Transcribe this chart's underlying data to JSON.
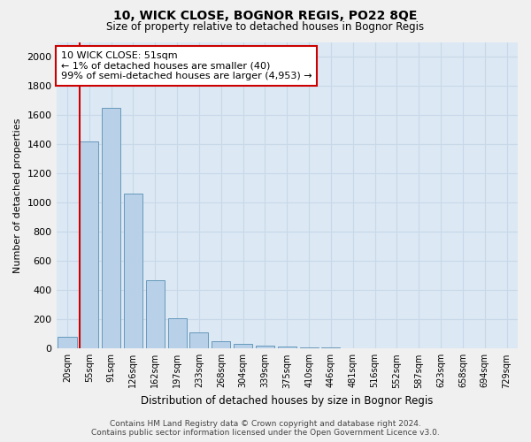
{
  "title1": "10, WICK CLOSE, BOGNOR REGIS, PO22 8QE",
  "title2": "Size of property relative to detached houses in Bognor Regis",
  "xlabel": "Distribution of detached houses by size in Bognor Regis",
  "ylabel": "Number of detached properties",
  "footer1": "Contains HM Land Registry data © Crown copyright and database right 2024.",
  "footer2": "Contains public sector information licensed under the Open Government Licence v3.0.",
  "annotation_title": "10 WICK CLOSE: 51sqm",
  "annotation_line1": "← 1% of detached houses are smaller (40)",
  "annotation_line2": "99% of semi-detached houses are larger (4,953) →",
  "bar_labels": [
    "20sqm",
    "55sqm",
    "91sqm",
    "126sqm",
    "162sqm",
    "197sqm",
    "233sqm",
    "268sqm",
    "304sqm",
    "339sqm",
    "375sqm",
    "410sqm",
    "446sqm",
    "481sqm",
    "516sqm",
    "552sqm",
    "587sqm",
    "623sqm",
    "658sqm",
    "694sqm",
    "729sqm"
  ],
  "bar_values": [
    80,
    1420,
    1650,
    1060,
    470,
    205,
    110,
    50,
    30,
    18,
    12,
    8,
    5,
    3,
    2,
    2,
    1,
    1,
    0,
    0,
    0
  ],
  "bar_color": "#b8d0e8",
  "bar_edge_color": "#6699bb",
  "ylim": [
    0,
    2100
  ],
  "yticks": [
    0,
    200,
    400,
    600,
    800,
    1000,
    1200,
    1400,
    1600,
    1800,
    2000
  ],
  "grid_color": "#c8d8e8",
  "bg_color": "#dce8f4",
  "fig_color": "#f0f0f0",
  "annotation_box_color": "#ffffff",
  "annotation_box_edge": "#cc0000",
  "marker_line_color": "#cc0000"
}
